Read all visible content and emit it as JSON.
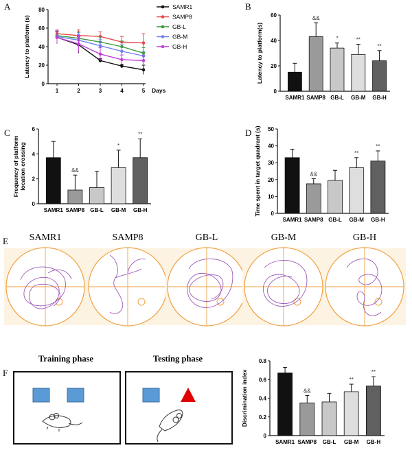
{
  "panel_labels": {
    "a": "A",
    "b": "B",
    "c": "C",
    "d": "D",
    "e": "E",
    "f": "F"
  },
  "colors": {
    "SAMR1": "#111111",
    "SAMP8": "#e8474a",
    "GB-L": "#3a9a3a",
    "GB-M": "#6b7ff0",
    "GB-H": "#c13fd8",
    "track": "#9b59b6",
    "quad": "#f0a040",
    "panel_bg": "#fdf3e2",
    "square": "#5b9bd5",
    "triangle": "#e00000"
  },
  "groups": [
    "SAMR1",
    "SAMP8",
    "GB-L",
    "GB-M",
    "GB-H"
  ],
  "chart_data": [
    {
      "panel": "A",
      "type": "line",
      "x": [
        1,
        2,
        3,
        4,
        5
      ],
      "xlabel": "Days",
      "ylabel": "Latency to platform (s)",
      "ylim": [
        0,
        80
      ],
      "yticks": [
        0,
        20,
        40,
        60,
        80
      ],
      "series": [
        {
          "name": "SAMR1",
          "values": [
            50,
            42,
            25,
            19,
            15
          ],
          "err": [
            6,
            9,
            2,
            2,
            5
          ]
        },
        {
          "name": "SAMP8",
          "values": [
            54,
            52,
            51,
            45,
            44
          ],
          "err": [
            4,
            6,
            5,
            6,
            10
          ]
        },
        {
          "name": "GB-L",
          "values": [
            52,
            49,
            45,
            40,
            33
          ],
          "err": [
            5,
            7,
            6,
            6,
            6
          ]
        },
        {
          "name": "GB-M",
          "values": [
            51,
            47,
            41,
            35,
            30
          ],
          "err": [
            6,
            8,
            7,
            7,
            5
          ]
        },
        {
          "name": "GB-H",
          "values": [
            50,
            43,
            32,
            26,
            25
          ],
          "err": [
            7,
            9,
            7,
            5,
            5
          ]
        }
      ]
    },
    {
      "panel": "B",
      "type": "bar",
      "categories": [
        "SAMR1",
        "SAMP8",
        "GB-L",
        "GB-M",
        "GB-H"
      ],
      "values": [
        15,
        43,
        34,
        29,
        24
      ],
      "err": [
        7,
        11,
        4,
        8,
        8
      ],
      "sig": [
        "",
        "&&",
        "*",
        "**",
        "**"
      ],
      "ylabel": "Latency to platform(s)",
      "ylim": [
        0,
        60
      ],
      "yticks": [
        0,
        20,
        40,
        60
      ]
    },
    {
      "panel": "C",
      "type": "bar",
      "categories": [
        "SAMR1",
        "SAMP8",
        "GB-L",
        "GB-M",
        "GB-H"
      ],
      "values": [
        3.7,
        1.1,
        1.3,
        2.9,
        3.7
      ],
      "err": [
        1.3,
        1.2,
        1.3,
        1.4,
        1.5
      ],
      "sig": [
        "",
        "&&",
        "",
        "*",
        "**"
      ],
      "ylabel": "Frequency of platform location crossing",
      "ylim": [
        0,
        6
      ],
      "yticks": [
        0,
        2,
        4,
        6
      ]
    },
    {
      "panel": "D",
      "type": "bar",
      "categories": [
        "SAMR1",
        "SAMP8",
        "GB-L",
        "GB-M",
        "GB-H"
      ],
      "values": [
        33,
        17.5,
        19.5,
        27,
        31
      ],
      "err": [
        5,
        3,
        6,
        6,
        6
      ],
      "sig": [
        "",
        "&&",
        "",
        "**",
        "**"
      ],
      "ylabel": "Time spent in target quadrant (s)",
      "ylim": [
        0,
        50
      ],
      "yticks": [
        0,
        10,
        20,
        30,
        40,
        50
      ]
    },
    {
      "panel": "F",
      "type": "bar",
      "categories": [
        "SAMR1",
        "SAMP8",
        "GB-L",
        "GB-M",
        "GB-H"
      ],
      "values": [
        0.67,
        0.35,
        0.36,
        0.47,
        0.53
      ],
      "err": [
        0.06,
        0.08,
        0.09,
        0.08,
        0.1
      ],
      "sig": [
        "",
        "&&",
        "",
        "**",
        "**"
      ],
      "ylabel": "Discrimination index",
      "ylim": [
        0,
        0.8
      ],
      "yticks": [
        0,
        0.2,
        0.4,
        0.6,
        0.8
      ]
    }
  ],
  "maze_labels": [
    "SAMR1",
    "SAMP8",
    "GB-L",
    "GB-M",
    "GB-H"
  ],
  "phases": {
    "training": "Training phase",
    "testing": "Testing phase"
  }
}
